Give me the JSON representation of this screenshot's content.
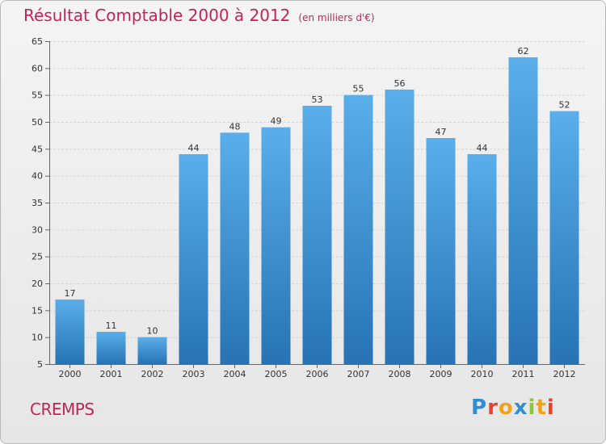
{
  "header": {
    "title": "Résultat Comptable 2000 à 2012",
    "unit": "(en milliers d'€)"
  },
  "footer": {
    "commune": "CREMPS",
    "logo_text": "Proxiti",
    "logo_letter_colors": [
      "#2f8fd0",
      "#e8432e",
      "#f0a21d",
      "#2f8fd0",
      "#8bc53f",
      "#f0a21d",
      "#e8432e"
    ]
  },
  "colors": {
    "title": "#c0245a",
    "bar_top": "#5aaee9",
    "bar_bottom": "#2773b4"
  },
  "chart_data": {
    "type": "bar",
    "title": "Résultat Comptable 2000 à 2012",
    "subtitle": "(en milliers d'€)",
    "xlabel": "",
    "ylabel": "",
    "categories": [
      "2000",
      "2001",
      "2002",
      "2003",
      "2004",
      "2005",
      "2006",
      "2007",
      "2008",
      "2009",
      "2010",
      "2011",
      "2012"
    ],
    "values": [
      17,
      11,
      10,
      44,
      48,
      49,
      53,
      55,
      56,
      47,
      44,
      62,
      52
    ],
    "ylim": [
      5,
      65
    ],
    "yticks": [
      5,
      10,
      15,
      20,
      25,
      30,
      35,
      40,
      45,
      50,
      55,
      60,
      65
    ],
    "grid": true
  }
}
